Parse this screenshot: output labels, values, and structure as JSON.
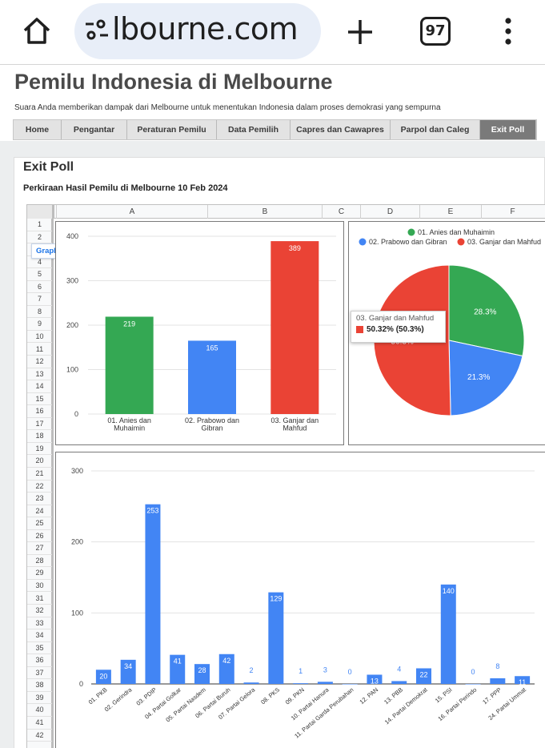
{
  "browser": {
    "url": "lbourne.com",
    "tab_count": "97"
  },
  "site": {
    "title": "Pemilu Indonesia di Melbourne",
    "tagline": "Suara Anda memberikan dampak dari Melbourne untuk menentukan Indonesia dalam proses demokrasi yang sempurna",
    "nav": [
      "Home",
      "Pengantar",
      "Peraturan Pemilu",
      "Data Pemilih",
      "Capres dan Cawapres",
      "Parpol dan Caleg",
      "Exit Poll"
    ],
    "active_nav": "Exit Poll"
  },
  "page": {
    "title": "Exit Poll",
    "subtitle": "Perkiraan Hasil Pemilu di Melbourne 10 Feb 2024"
  },
  "sheet": {
    "columns": [
      "A",
      "B",
      "C",
      "D",
      "E",
      "F"
    ],
    "rows": [
      "1",
      "2",
      "3",
      "4",
      "5",
      "6",
      "7",
      "8",
      "9",
      "10",
      "11",
      "12",
      "13",
      "14",
      "15",
      "16",
      "17",
      "18",
      "19",
      "20",
      "21",
      "22",
      "23",
      "24",
      "25",
      "26",
      "27",
      "28",
      "29",
      "30",
      "31",
      "32",
      "33",
      "34",
      "35",
      "36",
      "37",
      "38",
      "39",
      "40",
      "41",
      "42"
    ],
    "graph_tab": "Graph"
  },
  "colors": {
    "green": "#34a853",
    "blue": "#4285f4",
    "red": "#ea4335"
  },
  "chart_data": [
    {
      "type": "bar",
      "categories": [
        "01. Anies dan Muhaimin",
        "02. Prabowo dan Gibran",
        "03. Ganjar dan Mahfud"
      ],
      "category_lines": [
        [
          "01. Anies dan",
          "Muhaimin"
        ],
        [
          "02. Prabowo dan",
          "Gibran"
        ],
        [
          "03. Ganjar dan",
          "Mahfud"
        ]
      ],
      "values": [
        219,
        165,
        389
      ],
      "colors": [
        "#34a853",
        "#4285f4",
        "#ea4335"
      ],
      "ylim": [
        0,
        400
      ],
      "yticks": [
        0,
        100,
        200,
        300,
        400
      ],
      "grid": true
    },
    {
      "type": "pie",
      "labels": [
        "01. Anies dan Muhaimin",
        "02. Prabowo dan Gibran",
        "03. Ganjar dan Mahfud"
      ],
      "values": [
        28.3,
        21.3,
        50.32
      ],
      "slice_labels": [
        "28.3%",
        "21.3%",
        "50.3%"
      ],
      "colors": [
        "#34a853",
        "#4285f4",
        "#ea4335"
      ],
      "legend": "top",
      "tooltip": {
        "title": "03. Ganjar dan Mahfud",
        "value": "50.32% (50.3%)"
      }
    },
    {
      "type": "bar",
      "categories": [
        "01. PKB",
        "02. Gerindra",
        "03. PDIP",
        "04. Partai Golkar",
        "05. Partai Nasdem",
        "06. Partai Buruh",
        "07. Partai Gelora",
        "08. PKS",
        "09. PKN",
        "10. Partai Hanura",
        "11. Partai Garda Perubahan",
        "12. PAN",
        "13. PBB",
        "14. Partai Demokrat",
        "15. PSI",
        "16. Partai Perindo",
        "17. PPP",
        "24. Partai Ummat"
      ],
      "values": [
        20,
        34,
        253,
        41,
        28,
        42,
        2,
        129,
        1,
        3,
        0,
        13,
        4,
        22,
        140,
        0,
        8,
        11
      ],
      "color": "#4285f4",
      "ylim": [
        0,
        300
      ],
      "yticks": [
        0,
        100,
        200,
        300
      ],
      "grid": true
    }
  ]
}
